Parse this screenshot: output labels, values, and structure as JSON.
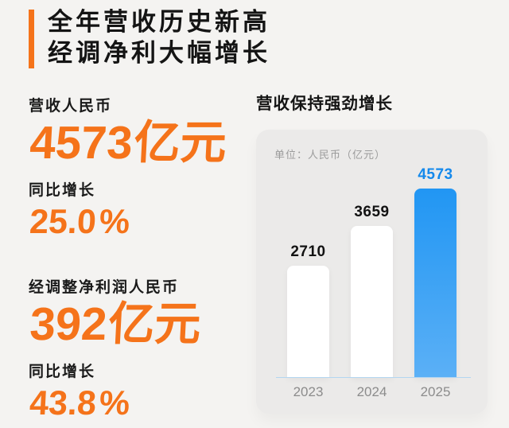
{
  "colors": {
    "background": "#f4f3f1",
    "accent_orange": "#f5731a",
    "title_ink": "#141414",
    "card_background": "#ebeae9",
    "unit_grey": "#9b9b9b",
    "axis_grey": "#8c8c8c",
    "highlight_blue_top": "#2196f3",
    "highlight_blue_bottom": "#5bb0f6",
    "highlight_value_blue": "#1489ec",
    "baseline_blue": "#b3d6f1",
    "bar_white": "#ffffff"
  },
  "header": {
    "title_line1": "全年营收历史新高",
    "title_line2": "经调净利大幅增长"
  },
  "stats": [
    {
      "label": "营收人民币",
      "value": "4573",
      "unit": "亿元",
      "growth_label": "同比增长",
      "growth_value": "25.0",
      "growth_suffix": "%"
    },
    {
      "label": "经调整净利润人民币",
      "value": "392",
      "unit": "亿元",
      "growth_label": "同比增长",
      "growth_value": "43.8",
      "growth_suffix": "%"
    }
  ],
  "chart_data": {
    "type": "bar",
    "title": "营收保持强劲增长",
    "unit_label": "单位：人民币（亿元）",
    "categories": [
      "2023",
      "2024",
      "2025"
    ],
    "values": [
      2710,
      3659,
      4573
    ],
    "highlight_index": 2,
    "value_labels": true,
    "grid": false,
    "legend": false,
    "ylim": [
      0,
      4573
    ],
    "xlabel": "",
    "ylabel": "人民币（亿元）"
  }
}
